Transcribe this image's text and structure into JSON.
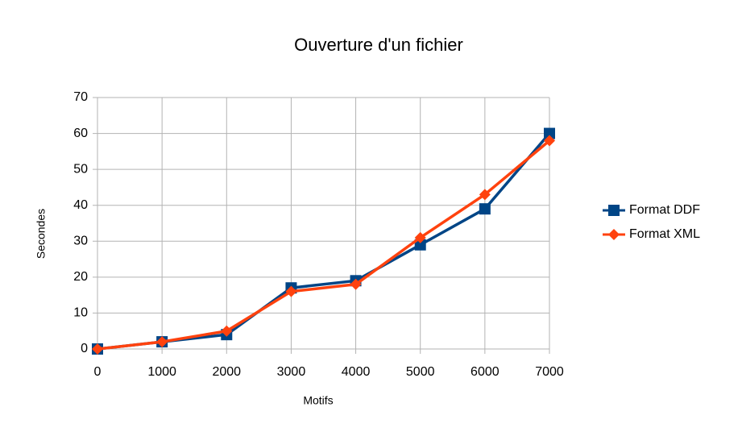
{
  "chart_data": {
    "type": "line",
    "title": "Ouverture d'un fichier",
    "xlabel": "Motifs",
    "ylabel": "Secondes",
    "x": [
      0,
      1000,
      2000,
      3000,
      4000,
      5000,
      6000,
      7000
    ],
    "series": [
      {
        "name": "Format DDF",
        "color": "#004586",
        "marker": "square",
        "values": [
          0,
          2,
          4,
          17,
          19,
          29,
          39,
          60
        ]
      },
      {
        "name": "Format XML",
        "color": "#ff420e",
        "marker": "diamond",
        "values": [
          0,
          2,
          5,
          16,
          18,
          31,
          43,
          58
        ]
      }
    ],
    "xlim": [
      0,
      7000
    ],
    "xticks": [
      0,
      1000,
      2000,
      3000,
      4000,
      5000,
      6000,
      7000
    ],
    "ylim": [
      0,
      70
    ],
    "yticks": [
      0,
      10,
      20,
      30,
      40,
      50,
      60,
      70
    ],
    "grid": true,
    "legend": "right"
  }
}
